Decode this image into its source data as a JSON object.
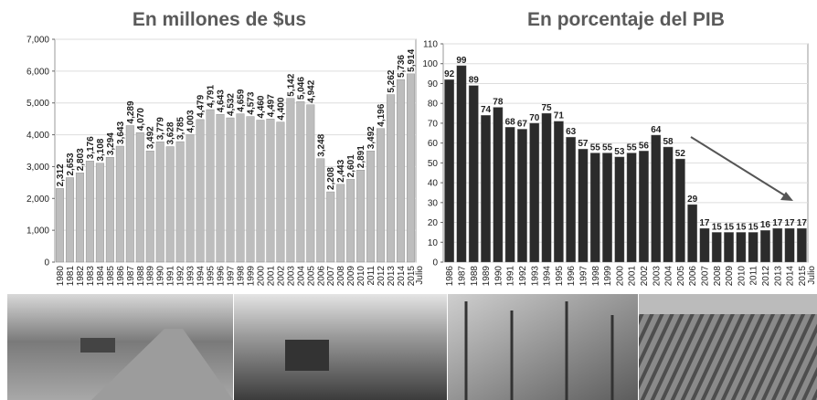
{
  "chart_data": [
    {
      "type": "bar",
      "title": "En millones de $us",
      "categories": [
        "1980",
        "1981",
        "1982",
        "1983",
        "1984",
        "1985",
        "1986",
        "1987",
        "1988",
        "1989",
        "1990",
        "1991",
        "1992",
        "1993",
        "1994",
        "1995",
        "1996",
        "1997",
        "1998",
        "1999",
        "2000",
        "2001",
        "2002",
        "2003",
        "2004",
        "2005",
        "2006",
        "2007",
        "2008",
        "2009",
        "2010",
        "2011",
        "2012",
        "2013",
        "2014",
        "2015"
      ],
      "values": [
        2312,
        2653,
        2803,
        3176,
        3108,
        3294,
        3643,
        4289,
        4070,
        3492,
        3779,
        3628,
        3785,
        4003,
        4479,
        4791,
        4643,
        4532,
        4659,
        4573,
        4460,
        4497,
        4400,
        5142,
        5046,
        4942,
        3248,
        2208,
        2443,
        2601,
        2891,
        3492,
        4196,
        5262,
        5736,
        5914
      ],
      "value_labels": [
        "2,312",
        "2,653",
        "2,803",
        "3,176",
        "3,108",
        "3,294",
        "3,643",
        "4,289",
        "4,070",
        "3,492",
        "3,779",
        "3,628",
        "3,785",
        "4,003",
        "4,479",
        "4,791",
        "4,643",
        "4,532",
        "4,659",
        "4,573",
        "4,460",
        "4,497",
        "4,400",
        "5,142",
        "5,046",
        "4,942",
        "3,248",
        "2,208",
        "2,443",
        "2,601",
        "2,891",
        "3,492",
        "4,196",
        "5,262",
        "5,736",
        "5,914"
      ],
      "annotation": "Julio",
      "color": "#bdbdbd",
      "ylim": [
        0,
        7000
      ],
      "yticks": [
        0,
        {
          "value": 1000,
          "label": "1,000"
        },
        {
          "value": 2000,
          "label": "2,000"
        },
        {
          "value": 3000,
          "label": "3,000"
        },
        {
          "value": 4000,
          "label": "4,000"
        },
        {
          "value": 5000,
          "label": "5,000"
        },
        {
          "value": 6000,
          "label": "6,000"
        },
        {
          "value": 7000,
          "label": "7,000"
        }
      ],
      "grid": true
    },
    {
      "type": "bar",
      "title": "En porcentaje del PIB",
      "categories": [
        "1986",
        "1987",
        "1988",
        "1989",
        "1990",
        "1991",
        "1992",
        "1993",
        "1994",
        "1995",
        "1996",
        "1997",
        "1998",
        "1999",
        "2000",
        "2001",
        "2002",
        "2003",
        "2004",
        "2005",
        "2006",
        "2007",
        "2008",
        "2009",
        "2010",
        "2011",
        "2012",
        "2013",
        "2014",
        "2015"
      ],
      "values": [
        92,
        99,
        89,
        74,
        78,
        68,
        67,
        70,
        75,
        71,
        63,
        57,
        55,
        55,
        53,
        55,
        56,
        64,
        58,
        52,
        29,
        17,
        15,
        15,
        15,
        15,
        16,
        17,
        17,
        17
      ],
      "annotation": "Julio",
      "color": "#2b2b2b",
      "ylim": [
        0,
        110
      ],
      "yticks": [
        0,
        10,
        20,
        30,
        40,
        50,
        60,
        70,
        80,
        90,
        100,
        110
      ],
      "grid": true
    }
  ]
}
